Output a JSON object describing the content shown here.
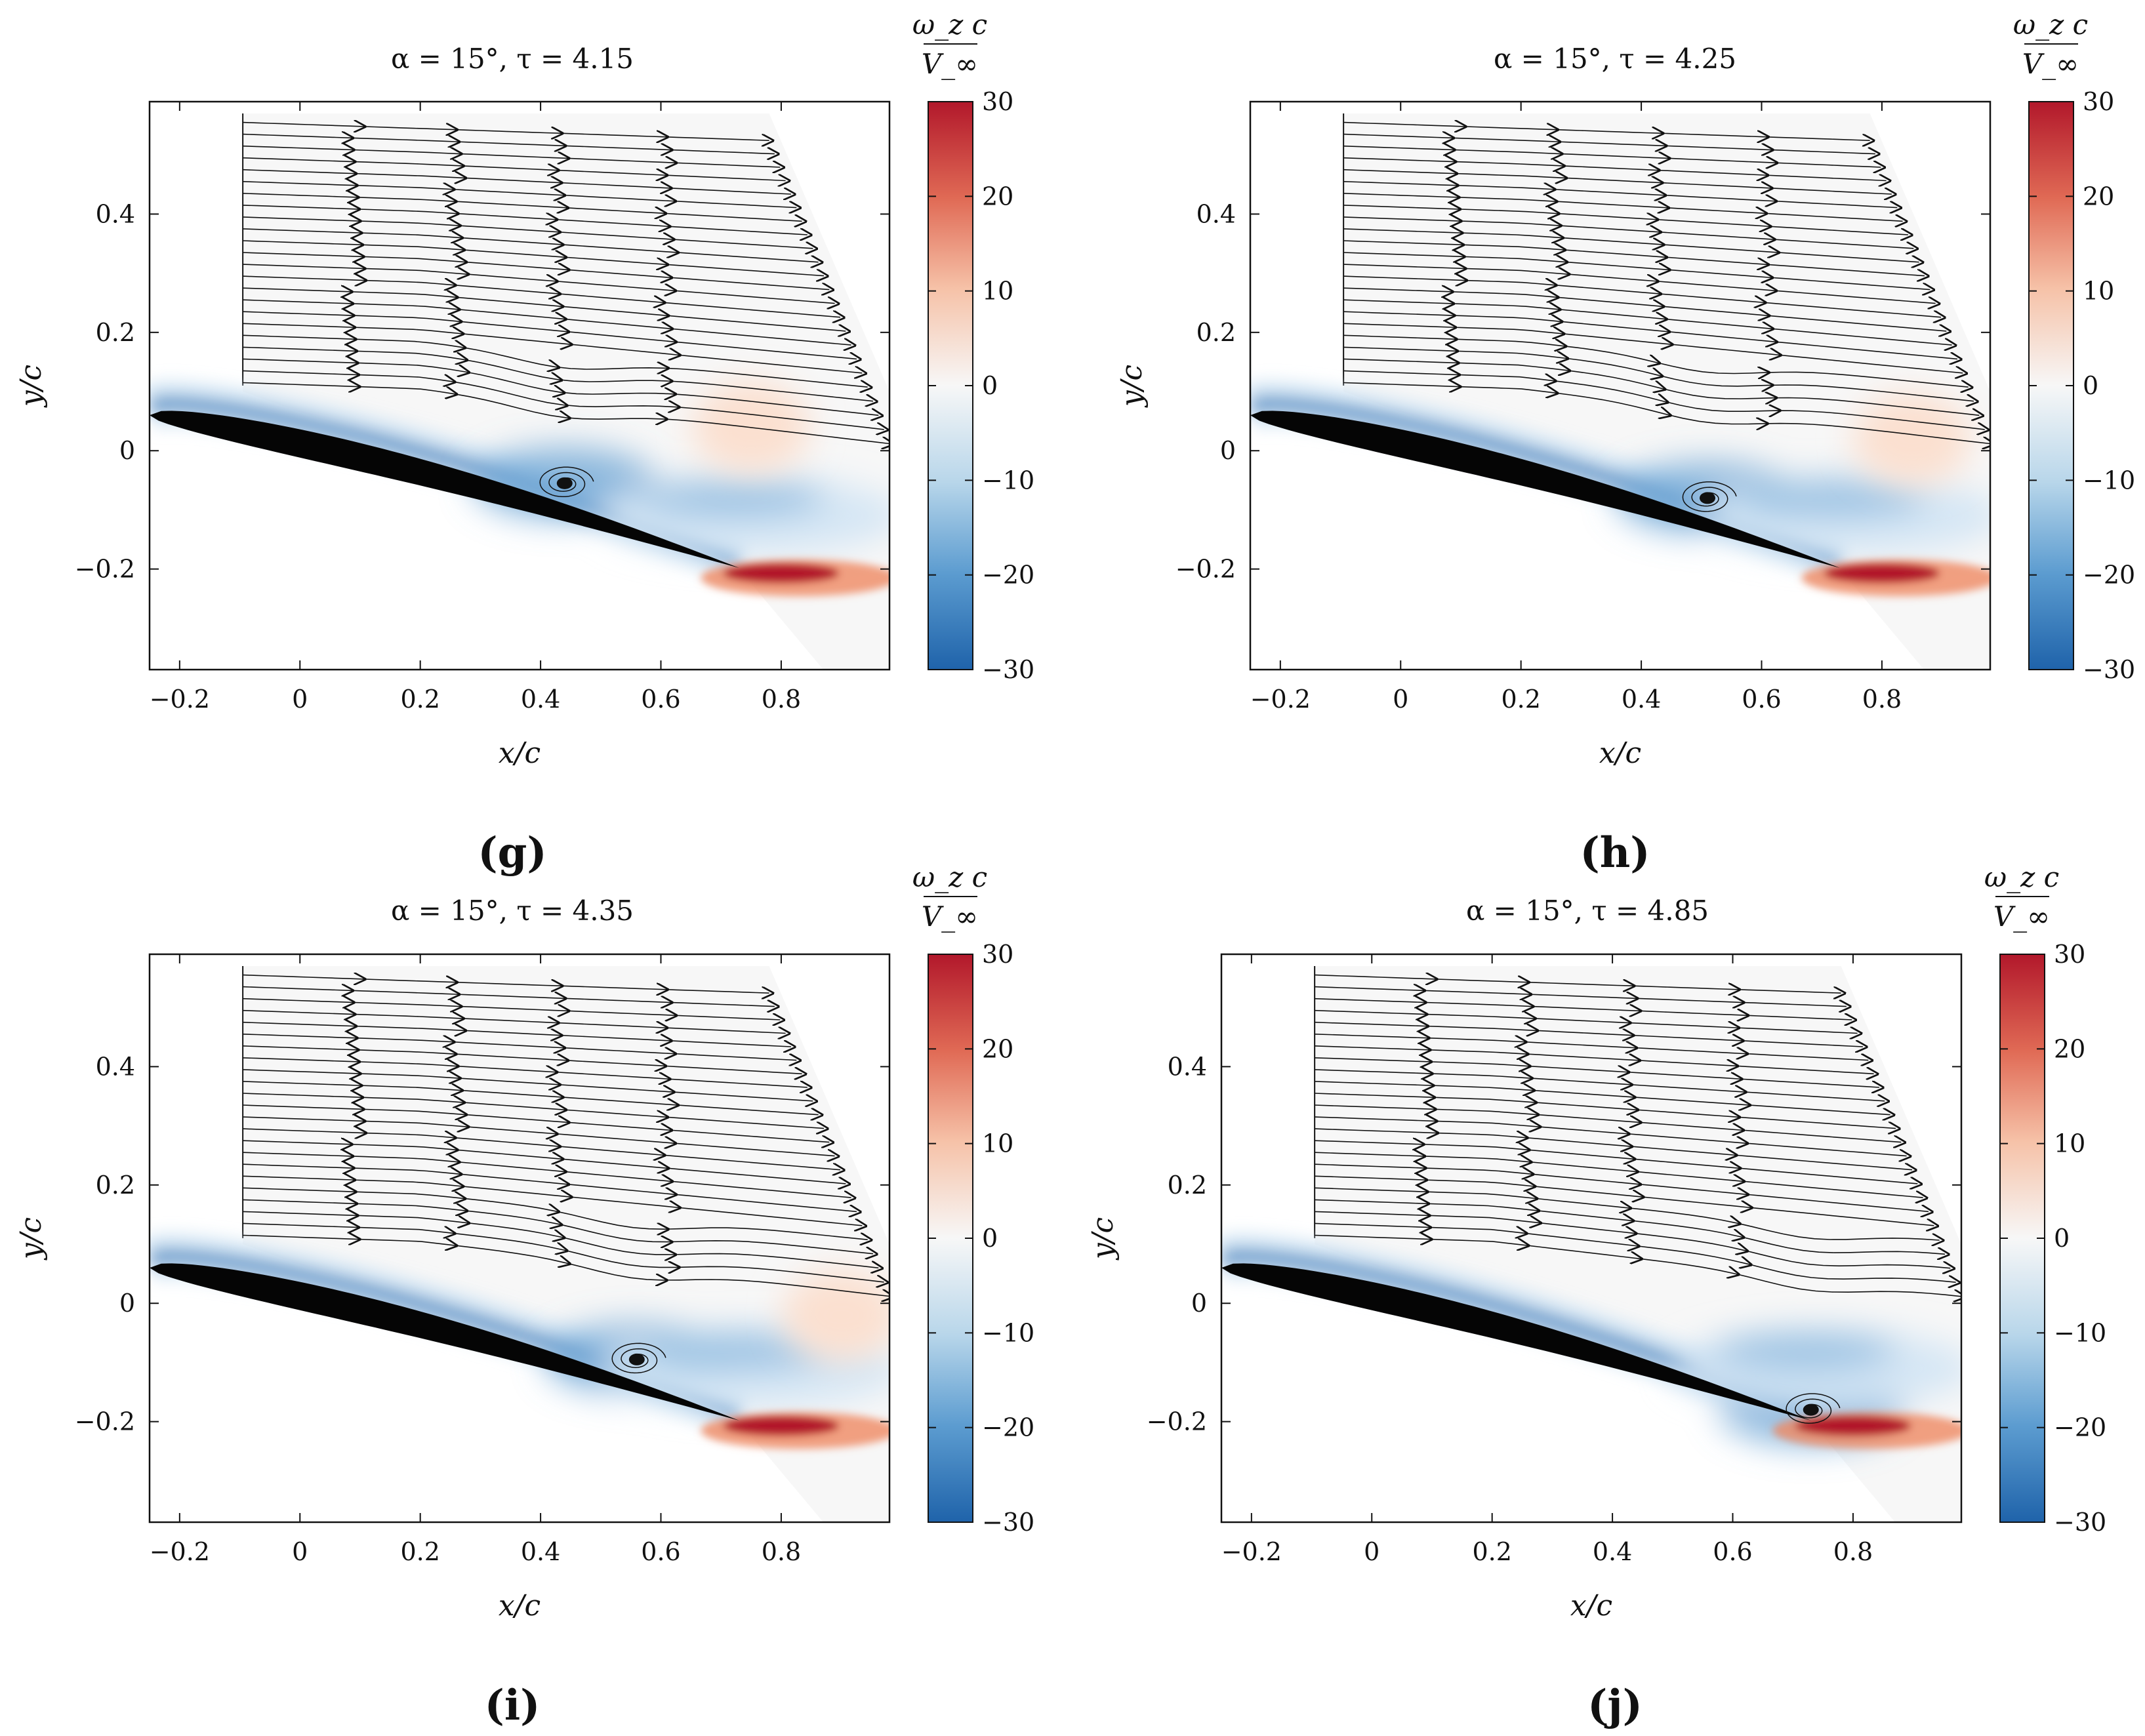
{
  "chart_data": [
    {
      "type": "heatmap",
      "panel_label": "(g)",
      "title": "α = 15°, τ = 4.15",
      "xlabel": "x/c",
      "ylabel": "y/c",
      "xlim": [
        -0.25,
        0.98
      ],
      "ylim": [
        -0.37,
        0.59
      ],
      "xticks": [
        -0.2,
        0,
        0.2,
        0.4,
        0.6,
        0.8
      ],
      "xtick_labels": [
        "−0.2",
        "0",
        "0.2",
        "0.4",
        "0.6",
        "0.8"
      ],
      "yticks": [
        -0.2,
        0,
        0.2,
        0.4
      ],
      "ytick_labels": [
        "−0.2",
        "0",
        "0.2",
        "0.4"
      ],
      "colorbar": {
        "label_num": "ω_z c",
        "label_den": "V_∞",
        "min": -30,
        "max": 30,
        "ticks": [
          30,
          20,
          10,
          0,
          -10,
          -20,
          -30
        ],
        "tick_labels": [
          "30",
          "20",
          "10",
          "0",
          "−10",
          "−20",
          "−30"
        ]
      },
      "vortex_center": [
        0.44,
        -0.055
      ],
      "positive_blob": [
        0.75,
        0.04
      ]
    },
    {
      "type": "heatmap",
      "panel_label": "(h)",
      "title": "α = 15°, τ = 4.25",
      "xlabel": "x/c",
      "ylabel": "y/c",
      "xlim": [
        -0.25,
        0.98
      ],
      "ylim": [
        -0.37,
        0.59
      ],
      "xticks": [
        -0.2,
        0,
        0.2,
        0.4,
        0.6,
        0.8
      ],
      "xtick_labels": [
        "−0.2",
        "0",
        "0.2",
        "0.4",
        "0.6",
        "0.8"
      ],
      "yticks": [
        -0.2,
        0,
        0.2,
        0.4
      ],
      "ytick_labels": [
        "−0.2",
        "0",
        "0.2",
        "0.4"
      ],
      "colorbar": {
        "label_num": "ω_z c",
        "label_den": "V_∞",
        "min": -30,
        "max": 30,
        "ticks": [
          30,
          20,
          10,
          0,
          -10,
          -20,
          -30
        ],
        "tick_labels": [
          "30",
          "20",
          "10",
          "0",
          "−10",
          "−20",
          "−30"
        ]
      },
      "vortex_center": [
        0.51,
        -0.08
      ],
      "positive_blob": [
        0.85,
        0.02
      ]
    },
    {
      "type": "heatmap",
      "panel_label": "(i)",
      "title": "α = 15°, τ = 4.35",
      "xlabel": "x/c",
      "ylabel": "y/c",
      "xlim": [
        -0.25,
        0.98
      ],
      "ylim": [
        -0.37,
        0.59
      ],
      "xticks": [
        -0.2,
        0,
        0.2,
        0.4,
        0.6,
        0.8
      ],
      "xtick_labels": [
        "−0.2",
        "0",
        "0.2",
        "0.4",
        "0.6",
        "0.8"
      ],
      "yticks": [
        -0.2,
        0,
        0.2,
        0.4
      ],
      "ytick_labels": [
        "−0.2",
        "0",
        "0.2",
        "0.4"
      ],
      "colorbar": {
        "label_num": "ω_z c",
        "label_den": "V_∞",
        "min": -30,
        "max": 30,
        "ticks": [
          30,
          20,
          10,
          0,
          -10,
          -20,
          -30
        ],
        "tick_labels": [
          "30",
          "20",
          "10",
          "0",
          "−10",
          "−20",
          "−30"
        ]
      },
      "vortex_center": [
        0.56,
        -0.095
      ],
      "positive_blob": [
        0.9,
        -0.02
      ]
    },
    {
      "type": "heatmap",
      "panel_label": "(j)",
      "title": "α = 15°, τ = 4.85",
      "xlabel": "x/c",
      "ylabel": "y/c",
      "xlim": [
        -0.25,
        0.98
      ],
      "ylim": [
        -0.37,
        0.59
      ],
      "xticks": [
        -0.2,
        0,
        0.2,
        0.4,
        0.6,
        0.8
      ],
      "xtick_labels": [
        "−0.2",
        "0",
        "0.2",
        "0.4",
        "0.6",
        "0.8"
      ],
      "yticks": [
        -0.2,
        0,
        0.2,
        0.4
      ],
      "ytick_labels": [
        "−0.2",
        "0",
        "0.2",
        "0.4"
      ],
      "colorbar": {
        "label_num": "ω_z c",
        "label_den": "V_∞",
        "min": -30,
        "max": 30,
        "ticks": [
          30,
          20,
          10,
          0,
          -10,
          -20,
          -30
        ],
        "tick_labels": [
          "30",
          "20",
          "10",
          "0",
          "−10",
          "−20",
          "−30"
        ]
      },
      "vortex_center": [
        0.73,
        -0.18
      ],
      "positive_blob": null
    }
  ],
  "colors": {
    "airfoil": "#050505",
    "negative_strong": "#2166ac",
    "negative_mid": "#6fa8d6",
    "negative_light": "#d4e6f4",
    "positive_strong": "#b2182b",
    "positive_mid": "#ef8a62",
    "positive_light": "#fbe0d0",
    "neutral": "#f7f7f7"
  }
}
